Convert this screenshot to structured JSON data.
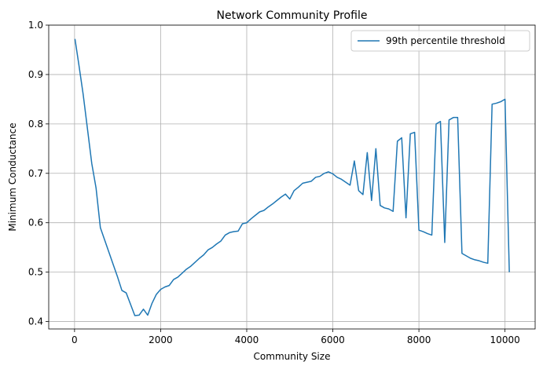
{
  "chart_data": {
    "type": "line",
    "title": "Network Community Profile",
    "xlabel": "Community Size",
    "ylabel": "Minimum Conductance",
    "xlim": [
      -600,
      10700
    ],
    "ylim": [
      0.385,
      1.0
    ],
    "xticks": [
      0,
      2000,
      4000,
      6000,
      8000,
      10000
    ],
    "yticks": [
      0.4,
      0.5,
      0.6,
      0.7,
      0.8,
      0.9,
      1.0
    ],
    "xtick_labels": [
      "0",
      "2000",
      "4000",
      "6000",
      "8000",
      "10000"
    ],
    "ytick_labels": [
      "0.4",
      "0.5",
      "0.6",
      "0.7",
      "0.8",
      "0.9",
      "1.0"
    ],
    "grid": true,
    "legend_position": "top-right",
    "series": [
      {
        "name": "99th percentile threshold",
        "color": "#1f77b4",
        "x": [
          10,
          100,
          200,
          300,
          400,
          500,
          600,
          700,
          800,
          900,
          1000,
          1100,
          1200,
          1300,
          1400,
          1500,
          1600,
          1700,
          1800,
          1900,
          2000,
          2100,
          2200,
          2300,
          2400,
          2500,
          2600,
          2700,
          2800,
          2900,
          3000,
          3100,
          3200,
          3300,
          3400,
          3500,
          3600,
          3700,
          3800,
          3900,
          4000,
          4100,
          4200,
          4300,
          4400,
          4500,
          4600,
          4700,
          4800,
          4900,
          5000,
          5100,
          5200,
          5300,
          5400,
          5500,
          5600,
          5700,
          5800,
          5900,
          6000,
          6100,
          6200,
          6300,
          6400,
          6500,
          6600,
          6700,
          6800,
          6900,
          7000,
          7100,
          7200,
          7300,
          7400,
          7500,
          7600,
          7700,
          7800,
          7900,
          8000,
          8100,
          8200,
          8300,
          8400,
          8500,
          8600,
          8700,
          8800,
          8900,
          9000,
          9100,
          9200,
          9300,
          9400,
          9500,
          9600,
          9700,
          9800,
          9900,
          10000,
          10100
        ],
        "y": [
          0.972,
          0.92,
          0.86,
          0.79,
          0.72,
          0.67,
          0.59,
          0.565,
          0.54,
          0.515,
          0.49,
          0.463,
          0.458,
          0.435,
          0.412,
          0.413,
          0.425,
          0.413,
          0.437,
          0.455,
          0.465,
          0.47,
          0.473,
          0.485,
          0.49,
          0.498,
          0.506,
          0.512,
          0.52,
          0.528,
          0.535,
          0.545,
          0.55,
          0.557,
          0.563,
          0.575,
          0.58,
          0.582,
          0.583,
          0.598,
          0.6,
          0.608,
          0.615,
          0.622,
          0.625,
          0.632,
          0.638,
          0.645,
          0.652,
          0.658,
          0.648,
          0.665,
          0.672,
          0.68,
          0.682,
          0.684,
          0.692,
          0.694,
          0.7,
          0.703,
          0.699,
          0.692,
          0.688,
          0.682,
          0.676,
          0.725,
          0.665,
          0.657,
          0.742,
          0.645,
          0.75,
          0.635,
          0.63,
          0.628,
          0.623,
          0.765,
          0.772,
          0.61,
          0.78,
          0.783,
          0.585,
          0.582,
          0.578,
          0.575,
          0.8,
          0.805,
          0.56,
          0.808,
          0.813,
          0.813,
          0.538,
          0.533,
          0.528,
          0.525,
          0.523,
          0.52,
          0.518,
          0.84,
          0.842,
          0.845,
          0.85,
          0.5
        ]
      }
    ]
  }
}
